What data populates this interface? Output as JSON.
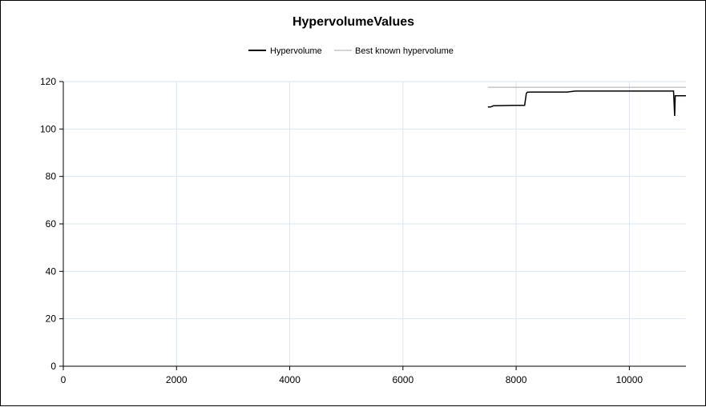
{
  "chart_data": {
    "type": "line",
    "title": "HypervolumeValues",
    "xlabel": "",
    "ylabel": "",
    "xlim": [
      0,
      11000
    ],
    "ylim": [
      0,
      120
    ],
    "xticks": [
      "0",
      "2000",
      "4000",
      "6000",
      "8000",
      "10000"
    ],
    "yticks": [
      "0",
      "20",
      "40",
      "60",
      "80",
      "100",
      "120"
    ],
    "grid": true,
    "legend_position": "top-center",
    "series": [
      {
        "name": "Hypervolume",
        "color": "#000000",
        "x": [
          7500,
          7550,
          7600,
          8000,
          8150,
          8180,
          8200,
          8300,
          8900,
          9000,
          9050,
          9200,
          10000,
          10500,
          10780,
          10800,
          10810,
          10850,
          11000
        ],
        "y": [
          109.3,
          109.3,
          109.8,
          110.0,
          110.0,
          115.0,
          115.5,
          115.6,
          115.6,
          115.9,
          116.0,
          116.0,
          116.0,
          116.0,
          116.0,
          105.5,
          114.0,
          114.0,
          114.0
        ]
      },
      {
        "name": "Best known hypervolume",
        "color": "#a9a9a9",
        "x": [
          7500,
          11000
        ],
        "y": [
          117.6,
          117.6
        ]
      }
    ]
  }
}
